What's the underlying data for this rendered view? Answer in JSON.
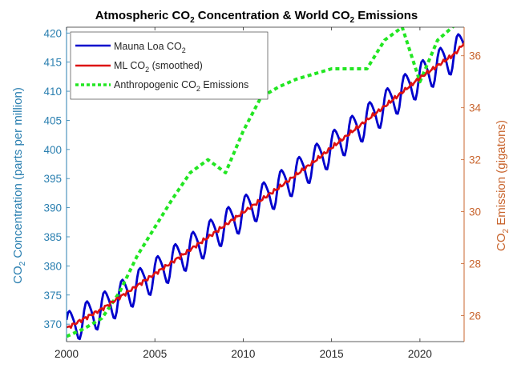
{
  "chart_data": {
    "type": "line",
    "title": {
      "prefix": "Atmospheric CO",
      "sub1": "2",
      "middle": " Concentration & World CO",
      "sub2": "2",
      "suffix": " Emissions"
    },
    "xlabel": "",
    "x_ticks": [
      2000,
      2005,
      2010,
      2015,
      2020
    ],
    "xlim": [
      2000,
      2022.5
    ],
    "left_axis": {
      "label_prefix": "CO",
      "label_sub": "2",
      "label_suffix": " Concentration (parts per million)",
      "color": "#2a7fb0",
      "ylim": [
        367,
        421
      ],
      "ticks": [
        370,
        375,
        380,
        385,
        390,
        395,
        400,
        405,
        410,
        415,
        420
      ]
    },
    "right_axis": {
      "label_prefix": "CO",
      "label_sub": "2",
      "label_suffix": " Emission (gigatons)",
      "color": "#c8642d",
      "ylim": [
        25.0,
        37.1
      ],
      "ticks": [
        26,
        28,
        30,
        32,
        34,
        36
      ]
    },
    "grid": false,
    "legend_position": "top-left",
    "series": [
      {
        "name": "Mauna Loa CO2",
        "legend_prefix": "Mauna Loa CO",
        "legend_sub": "2",
        "legend_suffix": "",
        "axis": "left",
        "color": "#0000cc",
        "style": "solid",
        "description": "monthly, seasonal cycle ~±3.3 ppm around trend",
        "trend_start": 369.7,
        "trend_end": 418.8,
        "seasonal_amplitude": 3.3
      },
      {
        "name": "ML CO2 (smoothed)",
        "legend_prefix": "ML CO",
        "legend_sub": "2",
        "legend_suffix": " (smoothed)",
        "axis": "left",
        "color": "#dd1111",
        "style": "solid",
        "x": [
          2000,
          2002,
          2004,
          2006,
          2008,
          2010,
          2012,
          2014,
          2016,
          2018,
          2020,
          2022,
          2022.5
        ],
        "values": [
          369.3,
          372.6,
          376.6,
          380.7,
          384.9,
          389.2,
          393.4,
          397.9,
          402.7,
          407.4,
          412.3,
          416.5,
          418.3
        ]
      },
      {
        "name": "Anthropogenic CO2 Emissions",
        "legend_prefix": "Anthropogenic CO",
        "legend_sub": "2",
        "legend_suffix": " Emissions",
        "axis": "right",
        "color": "#22e622",
        "style": "dotted",
        "x": [
          2000,
          2001,
          2002,
          2003,
          2004,
          2005,
          2006,
          2007,
          2008,
          2009,
          2010,
          2011,
          2012,
          2013,
          2014,
          2015,
          2016,
          2017,
          2018,
          2019,
          2020,
          2021,
          2022
        ],
        "values": [
          25.2,
          25.5,
          25.9,
          26.9,
          28.3,
          29.4,
          30.5,
          31.5,
          32.0,
          31.5,
          33.1,
          34.4,
          34.8,
          35.1,
          35.3,
          35.5,
          35.5,
          35.5,
          36.6,
          37.1,
          35.0,
          36.6,
          37.2
        ]
      }
    ]
  }
}
